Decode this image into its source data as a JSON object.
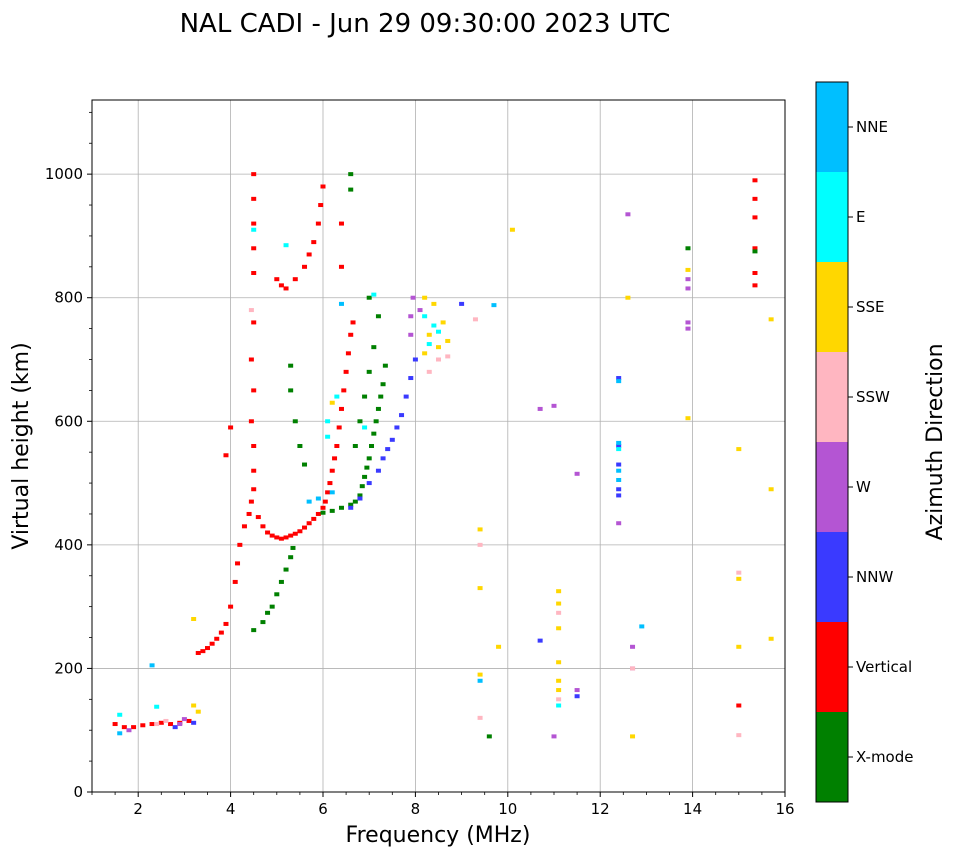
{
  "chart_data": {
    "type": "scatter",
    "title": "NAL CADI - Jun 29 09:30:00 2023 UTC",
    "xlabel": "Frequency (MHz)",
    "ylabel": "Virtual height (km)",
    "xlim": [
      1,
      16
    ],
    "ylim": [
      0,
      1120
    ],
    "xticks": [
      2,
      4,
      6,
      8,
      10,
      12,
      14,
      16
    ],
    "yticks": [
      0,
      200,
      400,
      600,
      800,
      1000
    ],
    "grid": true,
    "colorbar": {
      "label": "Azimuth Direction",
      "categories": [
        {
          "name": "X-mode",
          "color": "#008000"
        },
        {
          "name": "Vertical",
          "color": "#ff0000"
        },
        {
          "name": "NNW",
          "color": "#3a3aff"
        },
        {
          "name": "W",
          "color": "#b455d3"
        },
        {
          "name": "SSW",
          "color": "#ffb6c1"
        },
        {
          "name": "SSE",
          "color": "#ffd700"
        },
        {
          "name": "E",
          "color": "#00ffff"
        },
        {
          "name": "NNE",
          "color": "#00bfff"
        }
      ]
    },
    "series": [
      {
        "name": "Vertical",
        "color": "#ff0000",
        "points": [
          [
            1.5,
            110
          ],
          [
            1.7,
            105
          ],
          [
            1.9,
            105
          ],
          [
            2.1,
            108
          ],
          [
            2.3,
            110
          ],
          [
            2.5,
            112
          ],
          [
            2.7,
            110
          ],
          [
            2.9,
            112
          ],
          [
            3.1,
            115
          ],
          [
            3.3,
            225
          ],
          [
            3.4,
            228
          ],
          [
            3.5,
            233
          ],
          [
            3.6,
            240
          ],
          [
            3.7,
            248
          ],
          [
            3.8,
            258
          ],
          [
            3.9,
            272
          ],
          [
            4.0,
            300
          ],
          [
            4.1,
            340
          ],
          [
            4.15,
            370
          ],
          [
            4.2,
            400
          ],
          [
            4.3,
            430
          ],
          [
            4.4,
            450
          ],
          [
            4.45,
            470
          ],
          [
            4.5,
            490
          ],
          [
            4.6,
            445
          ],
          [
            4.7,
            430
          ],
          [
            4.8,
            420
          ],
          [
            4.9,
            415
          ],
          [
            5.0,
            412
          ],
          [
            5.1,
            410
          ],
          [
            5.2,
            412
          ],
          [
            5.3,
            415
          ],
          [
            5.4,
            418
          ],
          [
            5.5,
            422
          ],
          [
            5.6,
            428
          ],
          [
            5.7,
            435
          ],
          [
            5.8,
            442
          ],
          [
            5.9,
            450
          ],
          [
            6.0,
            460
          ],
          [
            6.05,
            470
          ],
          [
            6.1,
            485
          ],
          [
            6.15,
            500
          ],
          [
            6.2,
            520
          ],
          [
            6.25,
            540
          ],
          [
            6.3,
            560
          ],
          [
            6.35,
            590
          ],
          [
            6.4,
            620
          ],
          [
            6.45,
            650
          ],
          [
            6.5,
            680
          ],
          [
            6.55,
            710
          ],
          [
            6.6,
            740
          ],
          [
            6.65,
            760
          ],
          [
            4.5,
            520
          ],
          [
            4.5,
            560
          ],
          [
            4.45,
            600
          ],
          [
            4.5,
            650
          ],
          [
            4.45,
            700
          ],
          [
            4.5,
            760
          ],
          [
            4.5,
            840
          ],
          [
            4.5,
            880
          ],
          [
            4.5,
            920
          ],
          [
            4.5,
            960
          ],
          [
            4.5,
            1000
          ],
          [
            4.0,
            590
          ],
          [
            3.9,
            545
          ],
          [
            6.4,
            920
          ],
          [
            6.4,
            850
          ],
          [
            5.0,
            830
          ],
          [
            5.1,
            820
          ],
          [
            5.2,
            815
          ],
          [
            5.4,
            830
          ],
          [
            5.6,
            850
          ],
          [
            5.7,
            870
          ],
          [
            5.8,
            890
          ],
          [
            5.9,
            920
          ],
          [
            5.95,
            950
          ],
          [
            6.0,
            980
          ],
          [
            15.35,
            990
          ],
          [
            15.35,
            960
          ],
          [
            15.35,
            930
          ],
          [
            15.35,
            880
          ],
          [
            15.35,
            840
          ],
          [
            15.35,
            820
          ],
          [
            15.0,
            140
          ]
        ]
      },
      {
        "name": "X-mode",
        "color": "#008000",
        "points": [
          [
            4.5,
            262
          ],
          [
            4.7,
            275
          ],
          [
            4.8,
            290
          ],
          [
            4.9,
            300
          ],
          [
            5.0,
            320
          ],
          [
            5.1,
            340
          ],
          [
            5.2,
            360
          ],
          [
            5.3,
            380
          ],
          [
            5.35,
            395
          ],
          [
            6.0,
            452
          ],
          [
            6.2,
            455
          ],
          [
            6.4,
            460
          ],
          [
            6.6,
            465
          ],
          [
            6.7,
            470
          ],
          [
            6.8,
            480
          ],
          [
            6.85,
            495
          ],
          [
            6.9,
            510
          ],
          [
            6.95,
            525
          ],
          [
            7.0,
            540
          ],
          [
            7.05,
            560
          ],
          [
            7.1,
            580
          ],
          [
            7.15,
            600
          ],
          [
            7.2,
            620
          ],
          [
            7.25,
            640
          ],
          [
            7.3,
            660
          ],
          [
            7.35,
            690
          ],
          [
            6.7,
            560
          ],
          [
            6.8,
            600
          ],
          [
            6.9,
            640
          ],
          [
            7.0,
            680
          ],
          [
            7.1,
            720
          ],
          [
            7.2,
            770
          ],
          [
            7.0,
            800
          ],
          [
            5.6,
            530
          ],
          [
            5.5,
            560
          ],
          [
            5.4,
            600
          ],
          [
            5.3,
            650
          ],
          [
            5.3,
            690
          ],
          [
            6.6,
            975
          ],
          [
            6.6,
            1000
          ],
          [
            13.9,
            880
          ],
          [
            15.35,
            875
          ],
          [
            9.6,
            90
          ]
        ]
      },
      {
        "name": "NNW",
        "color": "#3a3aff",
        "points": [
          [
            6.6,
            460
          ],
          [
            6.8,
            475
          ],
          [
            7.0,
            500
          ],
          [
            7.2,
            520
          ],
          [
            7.3,
            540
          ],
          [
            7.4,
            555
          ],
          [
            7.5,
            570
          ],
          [
            7.6,
            590
          ],
          [
            7.7,
            610
          ],
          [
            7.8,
            640
          ],
          [
            7.9,
            670
          ],
          [
            8.0,
            700
          ],
          [
            12.4,
            670
          ],
          [
            12.4,
            560
          ],
          [
            12.4,
            530
          ],
          [
            12.4,
            490
          ],
          [
            12.4,
            480
          ],
          [
            10.7,
            245
          ],
          [
            11.5,
            155
          ],
          [
            9.0,
            790
          ],
          [
            2.8,
            105
          ],
          [
            3.2,
            112
          ]
        ]
      },
      {
        "name": "W",
        "color": "#b455d3",
        "points": [
          [
            7.9,
            740
          ],
          [
            7.9,
            770
          ],
          [
            7.95,
            800
          ],
          [
            8.1,
            780
          ],
          [
            12.4,
            435
          ],
          [
            12.6,
            935
          ],
          [
            12.7,
            235
          ],
          [
            12.7,
            200
          ],
          [
            13.9,
            830
          ],
          [
            13.9,
            815
          ],
          [
            13.9,
            760
          ],
          [
            13.9,
            750
          ],
          [
            10.7,
            620
          ],
          [
            11.0,
            625
          ],
          [
            11.5,
            515
          ],
          [
            11.5,
            165
          ],
          [
            11.0,
            90
          ],
          [
            2.9,
            110
          ],
          [
            3.0,
            118
          ],
          [
            1.8,
            100
          ]
        ]
      },
      {
        "name": "SSW",
        "color": "#ffb6c1",
        "points": [
          [
            8.3,
            680
          ],
          [
            8.5,
            700
          ],
          [
            8.7,
            705
          ],
          [
            9.4,
            400
          ],
          [
            9.3,
            765
          ],
          [
            9.4,
            120
          ],
          [
            11.1,
            150
          ],
          [
            11.1,
            290
          ],
          [
            12.7,
            200
          ],
          [
            15.0,
            355
          ],
          [
            15.0,
            92
          ],
          [
            2.4,
            110
          ],
          [
            2.6,
            115
          ],
          [
            4.45,
            780
          ]
        ]
      },
      {
        "name": "SSE",
        "color": "#ffd700",
        "points": [
          [
            8.2,
            800
          ],
          [
            8.4,
            790
          ],
          [
            8.6,
            760
          ],
          [
            8.7,
            730
          ],
          [
            8.5,
            720
          ],
          [
            8.3,
            740
          ],
          [
            8.2,
            710
          ],
          [
            9.4,
            425
          ],
          [
            9.4,
            330
          ],
          [
            9.4,
            190
          ],
          [
            9.8,
            235
          ],
          [
            10.1,
            910
          ],
          [
            11.1,
            325
          ],
          [
            11.1,
            305
          ],
          [
            11.1,
            265
          ],
          [
            11.1,
            210
          ],
          [
            11.1,
            180
          ],
          [
            11.1,
            165
          ],
          [
            12.6,
            800
          ],
          [
            12.7,
            90
          ],
          [
            13.9,
            845
          ],
          [
            13.9,
            605
          ],
          [
            15.0,
            555
          ],
          [
            15.0,
            345
          ],
          [
            15.0,
            235
          ],
          [
            15.7,
            765
          ],
          [
            15.7,
            490
          ],
          [
            15.7,
            248
          ],
          [
            3.2,
            140
          ],
          [
            3.3,
            130
          ],
          [
            3.2,
            280
          ],
          [
            6.2,
            630
          ]
        ]
      },
      {
        "name": "E",
        "color": "#00ffff",
        "points": [
          [
            8.2,
            770
          ],
          [
            8.4,
            755
          ],
          [
            8.5,
            745
          ],
          [
            8.3,
            725
          ],
          [
            6.1,
            600
          ],
          [
            6.1,
            575
          ],
          [
            6.3,
            640
          ],
          [
            6.9,
            590
          ],
          [
            7.1,
            805
          ],
          [
            5.2,
            885
          ],
          [
            4.5,
            910
          ],
          [
            11.1,
            140
          ],
          [
            12.4,
            555
          ],
          [
            1.6,
            125
          ],
          [
            2.4,
            138
          ]
        ]
      },
      {
        "name": "NNE",
        "color": "#00bfff",
        "points": [
          [
            12.4,
            565
          ],
          [
            12.4,
            520
          ],
          [
            12.4,
            505
          ],
          [
            12.4,
            665
          ],
          [
            12.9,
            268
          ],
          [
            9.4,
            180
          ],
          [
            5.9,
            475
          ],
          [
            5.7,
            470
          ],
          [
            6.2,
            485
          ],
          [
            6.4,
            790
          ],
          [
            1.6,
            95
          ],
          [
            2.3,
            205
          ],
          [
            9.7,
            788
          ]
        ]
      }
    ]
  }
}
